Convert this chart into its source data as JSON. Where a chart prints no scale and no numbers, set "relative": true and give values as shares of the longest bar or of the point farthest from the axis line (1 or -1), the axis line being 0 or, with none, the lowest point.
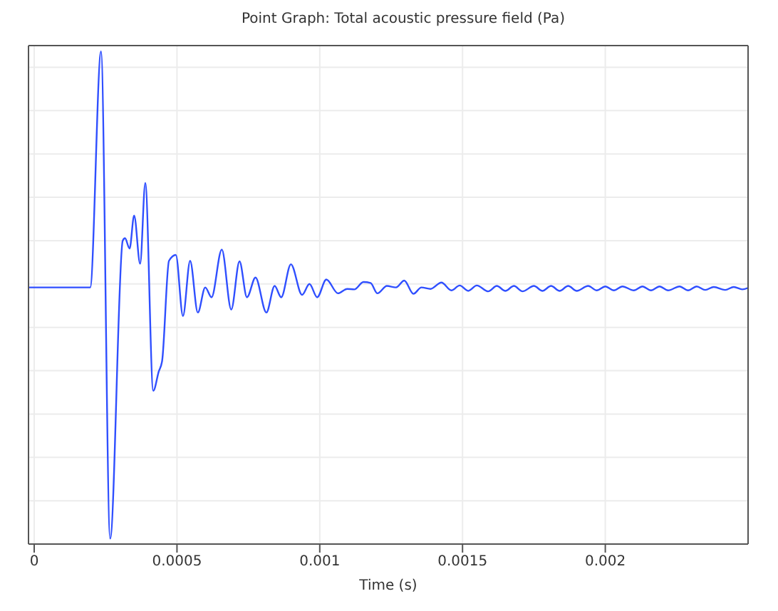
{
  "chart_data": {
    "type": "line",
    "title": "Point Graph: Total acoustic pressure field (Pa)",
    "xlabel": "Time (s)",
    "relative": true,
    "grid": true,
    "legend": false,
    "marker": "none",
    "line_style": "solid",
    "xlim": [
      -2e-05,
      0.0025
    ],
    "xticks": [
      0,
      0.0005,
      0.001,
      0.0015,
      0.002
    ],
    "x": [
      -2e-05,
      0.000196,
      0.000234,
      0.000266,
      0.00031,
      0.000318,
      0.000334,
      0.00035,
      0.000371,
      0.000389,
      0.000417,
      0.000436,
      0.000448,
      0.000472,
      0.000496,
      0.000521,
      0.000546,
      0.000573,
      0.000599,
      0.000621,
      0.000657,
      0.00069,
      0.000719,
      0.000745,
      0.000775,
      0.000813,
      0.000842,
      0.000865,
      0.000899,
      0.000938,
      0.000964,
      0.000991,
      0.001023,
      0.001064,
      0.001096,
      0.001121,
      0.001153,
      0.001178,
      0.001202,
      0.001235,
      0.001267,
      0.001296,
      0.001328,
      0.001356,
      0.001388,
      0.001426,
      0.001461,
      0.00149,
      0.00152,
      0.00155,
      0.00159,
      0.00162,
      0.00165,
      0.00168,
      0.00171,
      0.00175,
      0.00178,
      0.00181,
      0.00184,
      0.00187,
      0.0019,
      0.00194,
      0.00197,
      0.002,
      0.00203,
      0.00206,
      0.0021,
      0.00213,
      0.00216,
      0.00219,
      0.00222,
      0.00226,
      0.00229,
      0.00232,
      0.00235,
      0.00238,
      0.00242,
      0.00245,
      0.00248,
      0.0025
    ],
    "series": [
      {
        "color": "#2f4fff",
        "values": [
          0.521,
          0.521,
          1.0,
          0.011,
          0.616,
          0.621,
          0.6,
          0.667,
          0.569,
          0.733,
          0.311,
          0.35,
          0.372,
          0.575,
          0.587,
          0.463,
          0.575,
          0.47,
          0.521,
          0.501,
          0.598,
          0.476,
          0.574,
          0.501,
          0.541,
          0.47,
          0.524,
          0.501,
          0.568,
          0.506,
          0.528,
          0.501,
          0.537,
          0.509,
          0.518,
          0.517,
          0.532,
          0.53,
          0.509,
          0.524,
          0.521,
          0.535,
          0.508,
          0.521,
          0.518,
          0.531,
          0.515,
          0.525,
          0.514,
          0.525,
          0.513,
          0.524,
          0.514,
          0.524,
          0.513,
          0.524,
          0.514,
          0.524,
          0.514,
          0.524,
          0.514,
          0.524,
          0.515,
          0.523,
          0.515,
          0.523,
          0.515,
          0.523,
          0.515,
          0.523,
          0.515,
          0.523,
          0.515,
          0.523,
          0.516,
          0.522,
          0.516,
          0.522,
          0.517,
          0.52
        ]
      }
    ]
  }
}
